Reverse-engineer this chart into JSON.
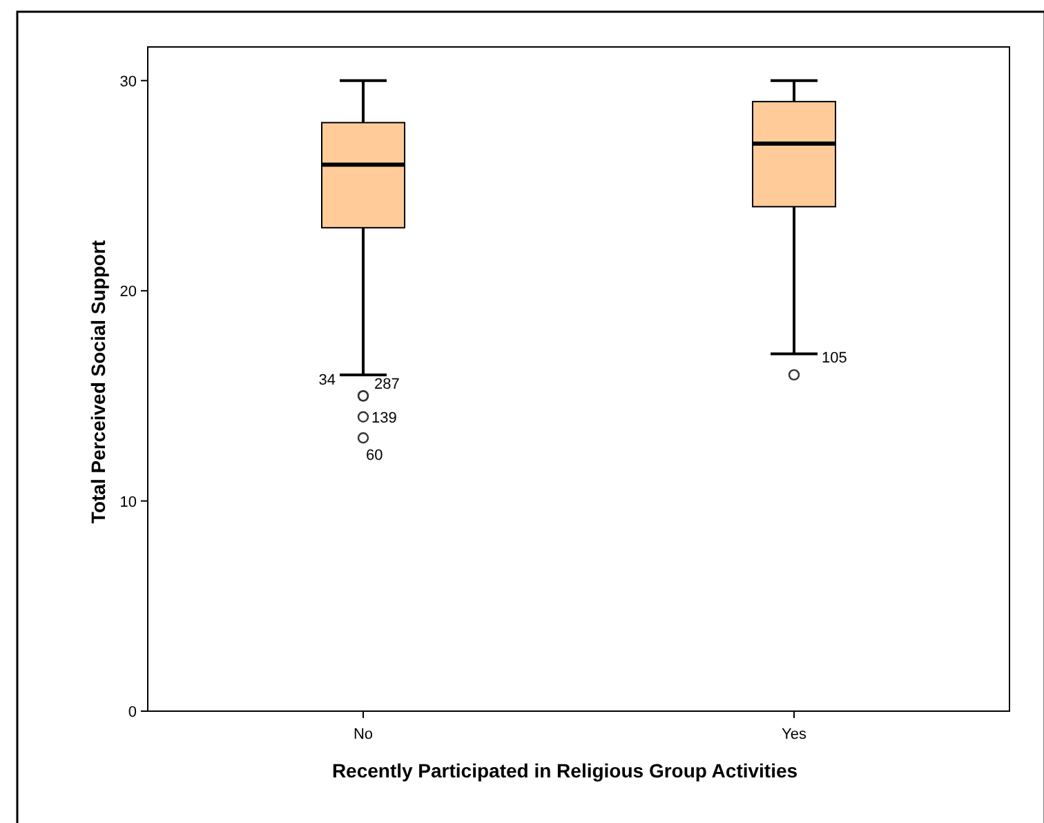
{
  "chart_data": {
    "type": "box",
    "xlabel": "Recently Participated in Religious Group Activities",
    "ylabel": "Total Perceived Social Support",
    "categories": [
      "No",
      "Yes"
    ],
    "color": "#ffcc99",
    "boxes": [
      {
        "low": 16,
        "q1": 23,
        "median": 26,
        "q3": 28,
        "high": 30,
        "outliers": [
          15,
          15,
          14,
          13
        ]
      },
      {
        "low": 17,
        "q1": 24,
        "median": 27,
        "q3": 29,
        "high": 30,
        "outliers": [
          16
        ]
      }
    ],
    "ylim": [
      0,
      31.6
    ],
    "yticks": [
      0,
      10,
      20,
      30
    ],
    "grid": false,
    "annotations": [
      "34",
      "287",
      "139",
      "60",
      "105"
    ]
  }
}
